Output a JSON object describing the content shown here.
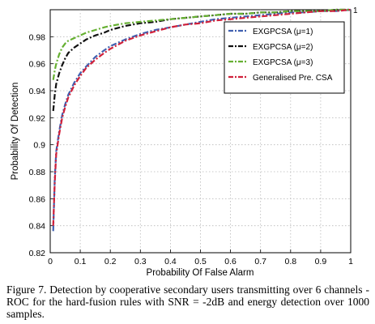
{
  "caption": "Figure 7. Detection by cooperative secondary users transmitting over 6 channels - ROC for the hard-fusion rules with SNR = -2dB and energy detection over 1000 samples.",
  "chart_data": {
    "type": "line",
    "title": "",
    "xlabel": "Probability Of False Alarm",
    "ylabel": "Probability Of Detection",
    "xlim": [
      0,
      1
    ],
    "ylim": [
      0.82,
      1
    ],
    "xticks": [
      0,
      0.1,
      0.2,
      0.3,
      0.4,
      0.5,
      0.6,
      0.7,
      0.8,
      0.9,
      1
    ],
    "yticks": [
      0.82,
      0.84,
      0.86,
      0.88,
      0.9,
      0.92,
      0.94,
      0.96,
      0.98,
      1
    ],
    "xtick_labels": [
      "0",
      "0.1",
      "0.2",
      "0.3",
      "0.4",
      "0.5",
      "0.6",
      "0.7",
      "0.8",
      "0.9",
      "1"
    ],
    "ytick_labels": [
      "0.82",
      "0.84",
      "0.86",
      "0.88",
      "0.9",
      "0.92",
      "0.94",
      "0.96",
      "0.98",
      "1"
    ],
    "grid": true,
    "legend_position": "top-right",
    "series": [
      {
        "name": "EXGPCSA (μ=1)",
        "color": "#4060b0",
        "dash": "dashdot",
        "x": [
          0.01,
          0.015,
          0.02,
          0.03,
          0.04,
          0.05,
          0.06,
          0.08,
          0.1,
          0.12,
          0.15,
          0.18,
          0.2,
          0.25,
          0.3,
          0.35,
          0.4,
          0.45,
          0.5,
          0.55,
          0.6,
          0.65,
          0.7,
          0.75,
          0.8,
          0.85,
          0.9,
          0.95,
          1.0
        ],
        "y": [
          0.836,
          0.875,
          0.895,
          0.91,
          0.922,
          0.93,
          0.937,
          0.946,
          0.953,
          0.958,
          0.965,
          0.97,
          0.973,
          0.978,
          0.982,
          0.985,
          0.987,
          0.989,
          0.991,
          0.993,
          0.994,
          0.995,
          0.996,
          0.997,
          0.998,
          0.998,
          0.999,
          0.999,
          1.0
        ]
      },
      {
        "name": "EXGPCSA (μ=2)",
        "color": "#111111",
        "dash": "dashdot",
        "x": [
          0.01,
          0.015,
          0.02,
          0.03,
          0.04,
          0.05,
          0.06,
          0.08,
          0.1,
          0.12,
          0.15,
          0.18,
          0.2,
          0.25,
          0.3,
          0.35,
          0.4,
          0.45,
          0.5,
          0.55,
          0.6,
          0.65,
          0.7,
          0.75,
          0.8,
          0.85,
          0.9,
          0.95,
          1.0
        ],
        "y": [
          0.925,
          0.937,
          0.945,
          0.953,
          0.959,
          0.964,
          0.968,
          0.972,
          0.975,
          0.978,
          0.981,
          0.983,
          0.985,
          0.988,
          0.99,
          0.991,
          0.993,
          0.994,
          0.995,
          0.996,
          0.997,
          0.997,
          0.998,
          0.998,
          0.999,
          0.999,
          0.999,
          1.0,
          1.0
        ]
      },
      {
        "name": "EXGPCSA (μ=3)",
        "color": "#66b032",
        "dash": "dashdot",
        "x": [
          0.01,
          0.015,
          0.02,
          0.03,
          0.04,
          0.05,
          0.06,
          0.08,
          0.1,
          0.12,
          0.15,
          0.18,
          0.2,
          0.25,
          0.3,
          0.35,
          0.4,
          0.45,
          0.5,
          0.55,
          0.6,
          0.65,
          0.7,
          0.75,
          0.8,
          0.85,
          0.9,
          0.95,
          1.0
        ],
        "y": [
          0.948,
          0.955,
          0.96,
          0.967,
          0.972,
          0.975,
          0.977,
          0.979,
          0.981,
          0.983,
          0.985,
          0.987,
          0.988,
          0.99,
          0.991,
          0.992,
          0.993,
          0.994,
          0.995,
          0.996,
          0.997,
          0.997,
          0.998,
          0.998,
          0.999,
          0.999,
          0.999,
          1.0,
          1.0
        ]
      },
      {
        "name": "Generalised Pre. CSA",
        "color": "#d0203a",
        "dash": "dashdot",
        "x": [
          0.01,
          0.015,
          0.02,
          0.03,
          0.04,
          0.05,
          0.06,
          0.08,
          0.1,
          0.12,
          0.15,
          0.18,
          0.2,
          0.25,
          0.3,
          0.35,
          0.4,
          0.45,
          0.5,
          0.55,
          0.6,
          0.65,
          0.7,
          0.75,
          0.8,
          0.85,
          0.9,
          0.95,
          1.0
        ],
        "y": [
          0.84,
          0.872,
          0.893,
          0.908,
          0.92,
          0.928,
          0.935,
          0.944,
          0.951,
          0.957,
          0.963,
          0.968,
          0.971,
          0.977,
          0.981,
          0.984,
          0.987,
          0.989,
          0.99,
          0.992,
          0.993,
          0.994,
          0.995,
          0.996,
          0.997,
          0.998,
          0.999,
          0.999,
          1.0
        ]
      }
    ]
  }
}
